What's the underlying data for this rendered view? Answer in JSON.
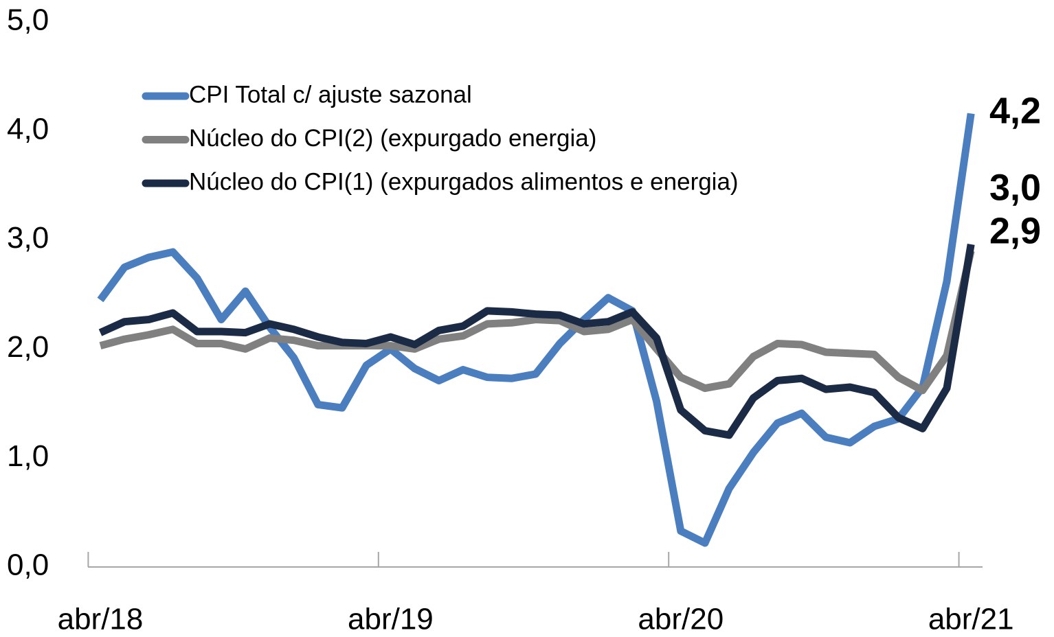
{
  "chart_data": {
    "type": "line",
    "categories": [
      "abr/18",
      null,
      null,
      null,
      null,
      null,
      null,
      null,
      null,
      null,
      null,
      null,
      "abr/19",
      null,
      null,
      null,
      null,
      null,
      null,
      null,
      null,
      null,
      null,
      null,
      "abr/20",
      null,
      null,
      null,
      null,
      null,
      null,
      null,
      null,
      null,
      null,
      null,
      "abr/21"
    ],
    "series": [
      {
        "name": "CPI Total c/ ajuste sazonal",
        "color": "#4a7ebf",
        "values": [
          2.45,
          2.75,
          2.84,
          2.89,
          2.65,
          2.27,
          2.53,
          2.2,
          1.92,
          1.49,
          1.46,
          1.85,
          2.0,
          1.82,
          1.71,
          1.81,
          1.74,
          1.73,
          1.77,
          2.05,
          2.27,
          2.47,
          2.35,
          1.52,
          0.33,
          0.22,
          0.72,
          1.05,
          1.32,
          1.41,
          1.19,
          1.14,
          1.29,
          1.36,
          1.65,
          2.62,
          4.16
        ],
        "value_labels": [
          null,
          null,
          null,
          null,
          null,
          null,
          null,
          null,
          null,
          null,
          null,
          null,
          null,
          null,
          null,
          null,
          null,
          null,
          null,
          null,
          null,
          null,
          null,
          null,
          null,
          null,
          null,
          null,
          null,
          null,
          null,
          null,
          null,
          null,
          null,
          null,
          "4,2"
        ]
      },
      {
        "name": "Núcleo do CPI(2) (expurgado energia)",
        "color": "#808080",
        "values": [
          2.03,
          2.09,
          2.13,
          2.18,
          2.05,
          2.05,
          2.0,
          2.1,
          2.08,
          2.03,
          2.03,
          2.03,
          2.03,
          2.0,
          2.09,
          2.12,
          2.23,
          2.24,
          2.27,
          2.26,
          2.16,
          2.18,
          2.27,
          2.0,
          1.74,
          1.64,
          1.68,
          1.93,
          2.05,
          2.04,
          1.97,
          1.96,
          1.95,
          1.74,
          1.62,
          1.94,
          2.9
        ],
        "value_labels": [
          null,
          null,
          null,
          null,
          null,
          null,
          null,
          null,
          null,
          null,
          null,
          null,
          null,
          null,
          null,
          null,
          null,
          null,
          null,
          null,
          null,
          null,
          null,
          null,
          null,
          null,
          null,
          null,
          null,
          null,
          null,
          null,
          null,
          null,
          null,
          null,
          "2,9"
        ]
      },
      {
        "name": "Núcleo do CPI(1) (expurgados alimentos e energia)",
        "color": "#1c2b45",
        "values": [
          2.15,
          2.25,
          2.27,
          2.33,
          2.16,
          2.16,
          2.15,
          2.23,
          2.18,
          2.11,
          2.06,
          2.05,
          2.11,
          2.04,
          2.17,
          2.21,
          2.35,
          2.34,
          2.32,
          2.31,
          2.23,
          2.25,
          2.34,
          2.1,
          1.44,
          1.25,
          1.21,
          1.55,
          1.71,
          1.73,
          1.63,
          1.65,
          1.6,
          1.37,
          1.27,
          1.64,
          2.96
        ],
        "value_labels": [
          null,
          null,
          null,
          null,
          null,
          null,
          null,
          null,
          null,
          null,
          null,
          null,
          null,
          null,
          null,
          null,
          null,
          null,
          null,
          null,
          null,
          null,
          null,
          null,
          null,
          null,
          null,
          null,
          null,
          null,
          null,
          null,
          null,
          null,
          null,
          null,
          "3,0"
        ]
      }
    ],
    "ylim": [
      0,
      5
    ],
    "yticks": [
      {
        "value": 0,
        "label": "0,0"
      },
      {
        "value": 1,
        "label": "1,0"
      },
      {
        "value": 2,
        "label": "2,0"
      },
      {
        "value": 3,
        "label": "3,0"
      },
      {
        "value": 4,
        "label": "4,0"
      },
      {
        "value": 5,
        "label": "5,0"
      }
    ],
    "grid": false
  }
}
